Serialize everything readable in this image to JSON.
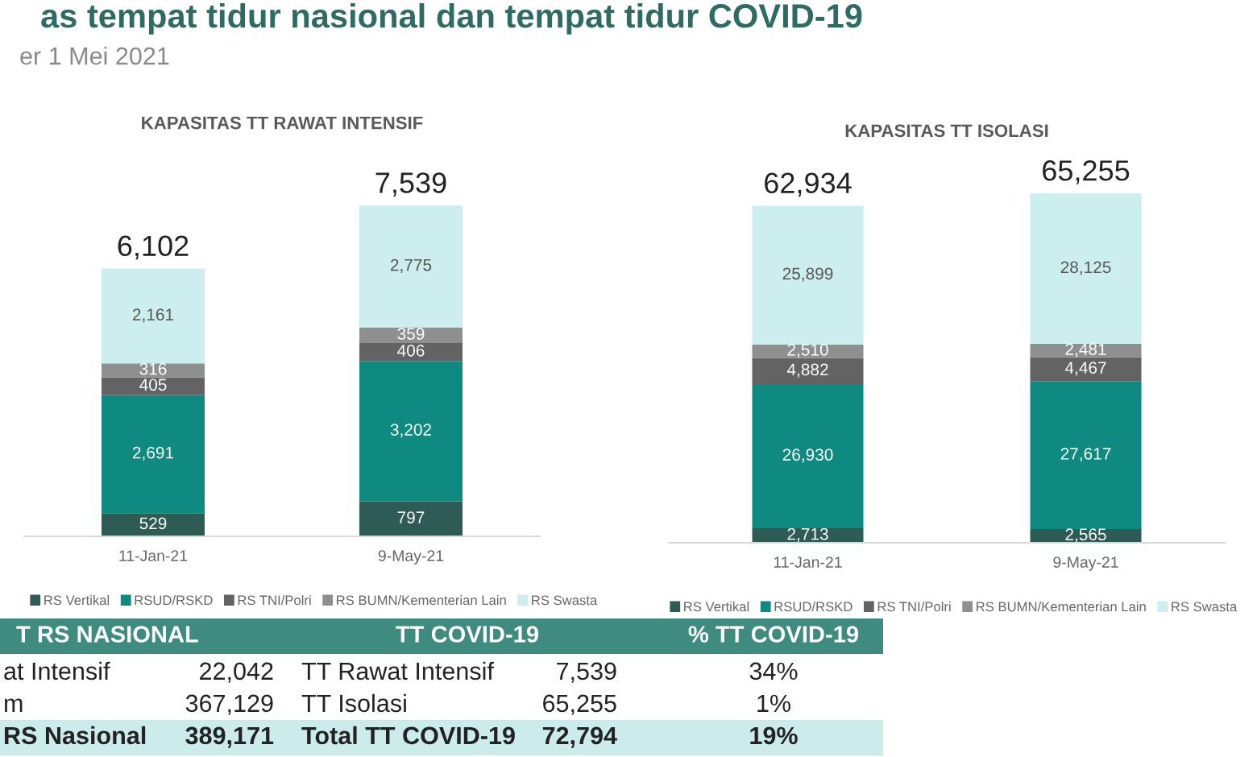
{
  "chart_data": [
    {
      "type": "bar",
      "title": "KAPASITAS TT RAWAT INTENSIF",
      "annotations": [
        "as tempat tidur nasional dan tempat tidur COVID-19",
        "er 1 Mei 2021"
      ],
      "categories": [
        "11-Jan-21",
        "9-May-21"
      ],
      "stacked": true,
      "legend": "bottom",
      "series": [
        {
          "name": "RS Vertikal",
          "color": "#2f5b55",
          "values": [
            529,
            797
          ],
          "value_labels": [
            "529",
            "797"
          ]
        },
        {
          "name": "RSUD/RSKD",
          "color": "#0e8a80",
          "values": [
            2691,
            3202
          ],
          "value_labels": [
            "2,691",
            "3,202"
          ]
        },
        {
          "name": "RS TNI/Polri",
          "color": "#636363",
          "values": [
            405,
            406
          ],
          "value_labels": [
            "405",
            "406"
          ]
        },
        {
          "name": "RS BUMN/Kementerian Lain",
          "color": "#8f8f8f",
          "values": [
            316,
            359
          ],
          "value_labels": [
            "316",
            "359"
          ]
        },
        {
          "name": "RS Swasta",
          "color": "#cdeeee",
          "values": [
            2161,
            2775
          ],
          "value_labels": [
            "2,161",
            "2,775"
          ]
        }
      ],
      "totals": [
        "6,102",
        "7,539"
      ]
    },
    {
      "type": "bar",
      "title": "KAPASITAS TT ISOLASI",
      "categories": [
        "11-Jan-21",
        "9-May-21"
      ],
      "stacked": true,
      "legend": "bottom",
      "series": [
        {
          "name": "RS Vertikal",
          "color": "#2f5b55",
          "values": [
            2713,
            2565
          ],
          "value_labels": [
            "2,713",
            "2,565"
          ]
        },
        {
          "name": "RSUD/RSKD",
          "color": "#0e8a80",
          "values": [
            26930,
            27617
          ],
          "value_labels": [
            "26,930",
            "27,617"
          ]
        },
        {
          "name": "RS TNI/Polri",
          "color": "#636363",
          "values": [
            4882,
            4467
          ],
          "value_labels": [
            "4,882",
            "4,467"
          ]
        },
        {
          "name": "RS BUMN/Kementerian Lain",
          "color": "#8f8f8f",
          "values": [
            2510,
            2481
          ],
          "value_labels": [
            "2,510",
            "2,481"
          ]
        },
        {
          "name": "RS Swasta",
          "color": "#cdeeee",
          "values": [
            25899,
            28125
          ],
          "value_labels": [
            "25,899",
            "28,125"
          ]
        }
      ],
      "totals": [
        "62,934",
        "65,255"
      ]
    },
    {
      "type": "other",
      "annotations": [
        "T RS NASIONAL",
        "TT COVID-19",
        "% TT COVID-19",
        "at Intensif",
        "22,042",
        "TT Rawat Intensif",
        "7,539",
        "34%",
        "m",
        "367,129",
        "TT Isolasi",
        "65,255",
        "1%",
        "RS Nasional",
        "389,171",
        "Total TT COVID-19",
        "72,794",
        "19%"
      ]
    }
  ]
}
